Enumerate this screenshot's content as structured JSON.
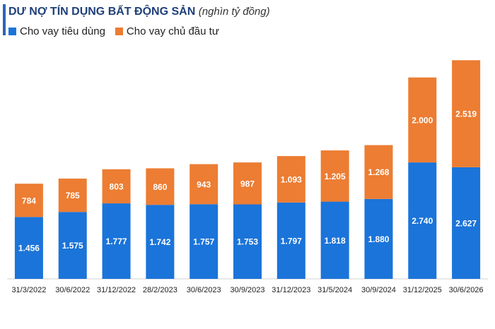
{
  "title": "DƯ NỢ TÍN DỤNG BẤT ĐỘNG SẢN",
  "unit": "(nghìn tỷ đồng)",
  "colors": {
    "consumer": "#1b74d9",
    "developer": "#ec7d33",
    "title": "#1f3f7a"
  },
  "chart_data": {
    "type": "bar",
    "stacked": true,
    "title": "DƯ NỢ TÍN DỤNG BẤT ĐỘNG SẢN",
    "xlabel": "",
    "ylabel": "",
    "categories": [
      "31/3/2022",
      "30/6/2022",
      "31/12/2022",
      "28/2/2023",
      "30/6/2023",
      "30/9/2023",
      "31/12/2023",
      "31/5/2024",
      "30/9/2024",
      "31/12/2025",
      "30/6/2026"
    ],
    "series": [
      {
        "name": "Cho vay tiêu dùng",
        "values": [
          1456,
          1575,
          1777,
          1742,
          1757,
          1753,
          1797,
          1818,
          1880,
          2740,
          2627
        ],
        "labels": [
          "1.456",
          "1.575",
          "1.777",
          "1.742",
          "1.757",
          "1.753",
          "1.797",
          "1.818",
          "1.880",
          "2.740",
          "2.627"
        ]
      },
      {
        "name": "Cho vay chủ đầu tư",
        "values": [
          784,
          785,
          803,
          860,
          943,
          987,
          1093,
          1205,
          1268,
          2000,
          2519
        ],
        "labels": [
          "784",
          "785",
          "803",
          "860",
          "943",
          "987",
          "1.093",
          "1.205",
          "1.268",
          "2.000",
          "2.519"
        ]
      }
    ],
    "ylim": [
      0,
      5400
    ],
    "grid": false,
    "legend": "top-left"
  }
}
